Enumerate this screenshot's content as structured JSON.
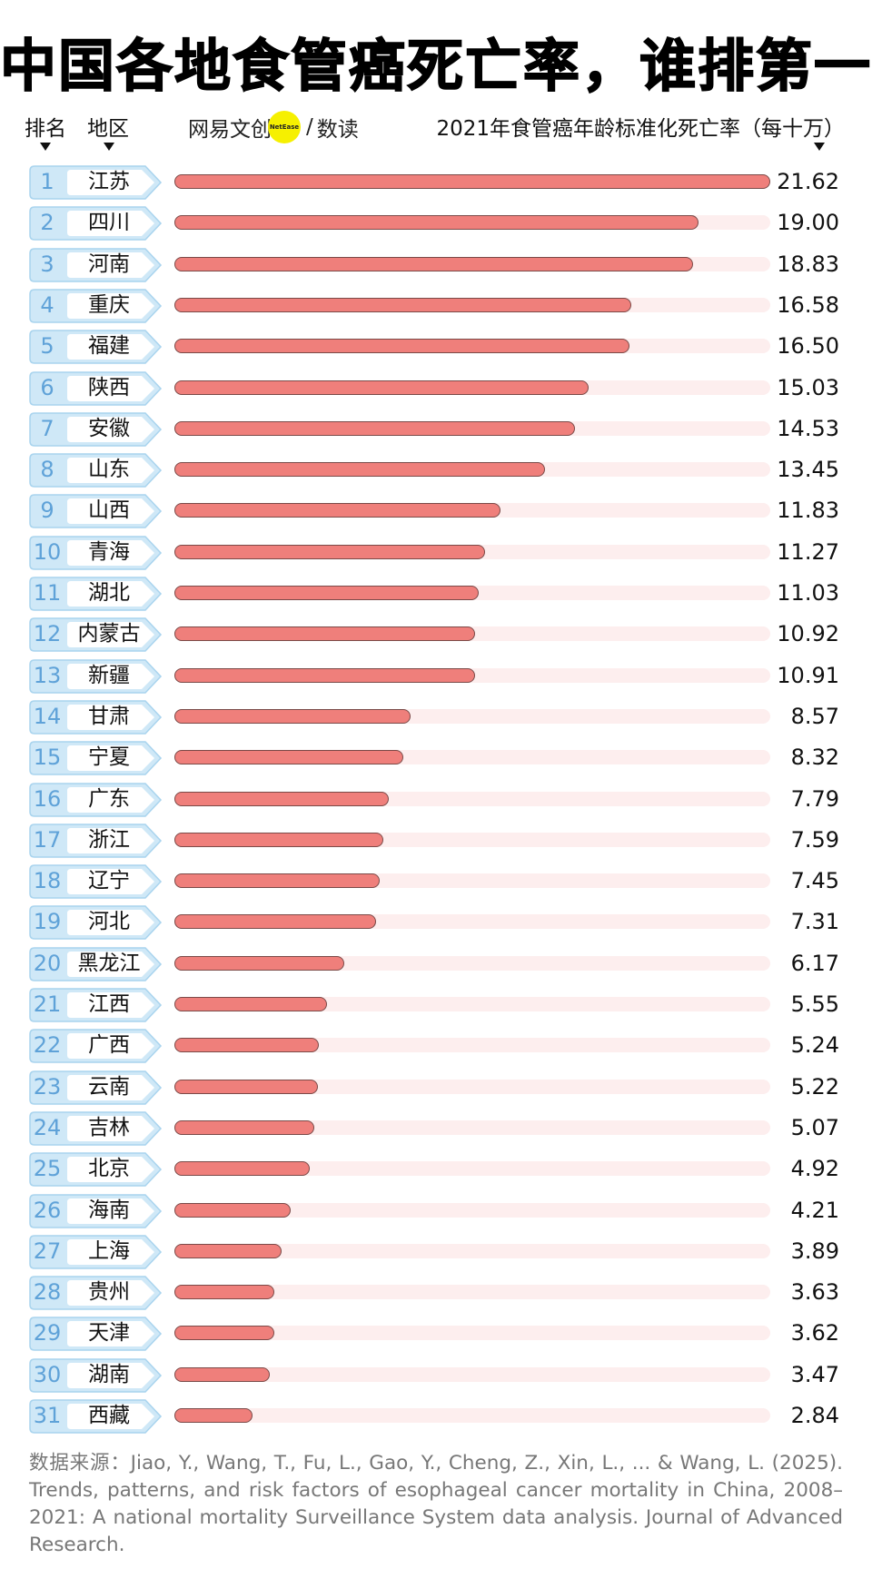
{
  "header": {
    "title": "中国各地食管癌死亡率，谁排第一",
    "col_rank": "排名",
    "col_region": "地区",
    "col_value": "2021年食管癌年龄标准化死亡率（每十万）",
    "brand_left": "网易文创",
    "brand_badge": "NetEase",
    "brand_slash": "/",
    "brand_right": "数读"
  },
  "colors": {
    "bar_fill": "#ef7f7b",
    "bar_border": "#7a4a48",
    "track": "#fdeeee",
    "tag_fill": "#cfe8f7",
    "tag_border": "#a9d4ee",
    "rank_text": "#5fa2d8",
    "brand_badge": "#f6f000"
  },
  "rows": [
    {
      "rank": "1",
      "region": "江苏",
      "value": "21.62"
    },
    {
      "rank": "2",
      "region": "四川",
      "value": "19.00"
    },
    {
      "rank": "3",
      "region": "河南",
      "value": "18.83"
    },
    {
      "rank": "4",
      "region": "重庆",
      "value": "16.58"
    },
    {
      "rank": "5",
      "region": "福建",
      "value": "16.50"
    },
    {
      "rank": "6",
      "region": "陕西",
      "value": "15.03"
    },
    {
      "rank": "7",
      "region": "安徽",
      "value": "14.53"
    },
    {
      "rank": "8",
      "region": "山东",
      "value": "13.45"
    },
    {
      "rank": "9",
      "region": "山西",
      "value": "11.83"
    },
    {
      "rank": "10",
      "region": "青海",
      "value": "11.27"
    },
    {
      "rank": "11",
      "region": "湖北",
      "value": "11.03"
    },
    {
      "rank": "12",
      "region": "内蒙古",
      "value": "10.92"
    },
    {
      "rank": "13",
      "region": "新疆",
      "value": "10.91"
    },
    {
      "rank": "14",
      "region": "甘肃",
      "value": "8.57"
    },
    {
      "rank": "15",
      "region": "宁夏",
      "value": "8.32"
    },
    {
      "rank": "16",
      "region": "广东",
      "value": "7.79"
    },
    {
      "rank": "17",
      "region": "浙江",
      "value": "7.59"
    },
    {
      "rank": "18",
      "region": "辽宁",
      "value": "7.45"
    },
    {
      "rank": "19",
      "region": "河北",
      "value": "7.31"
    },
    {
      "rank": "20",
      "region": "黑龙江",
      "value": "6.17"
    },
    {
      "rank": "21",
      "region": "江西",
      "value": "5.55"
    },
    {
      "rank": "22",
      "region": "广西",
      "value": "5.24"
    },
    {
      "rank": "23",
      "region": "云南",
      "value": "5.22"
    },
    {
      "rank": "24",
      "region": "吉林",
      "value": "5.07"
    },
    {
      "rank": "25",
      "region": "北京",
      "value": "4.92"
    },
    {
      "rank": "26",
      "region": "海南",
      "value": "4.21"
    },
    {
      "rank": "27",
      "region": "上海",
      "value": "3.89"
    },
    {
      "rank": "28",
      "region": "贵州",
      "value": "3.63"
    },
    {
      "rank": "29",
      "region": "天津",
      "value": "3.62"
    },
    {
      "rank": "30",
      "region": "湖南",
      "value": "3.47"
    },
    {
      "rank": "31",
      "region": "西藏",
      "value": "2.84"
    }
  ],
  "footer": {
    "source": "数据来源：Jiao, Y., Wang, T., Fu, L., Gao, Y., Cheng, Z., Xin, L., ... & Wang, L. (2025). Trends, patterns, and risk factors of esophageal cancer mortality in China, 2008–2021: A national mortality Surveillance System data analysis. Journal of Advanced Research."
  },
  "chart_data": {
    "type": "bar",
    "orientation": "horizontal",
    "title": "中国各地食管癌死亡率，谁排第一",
    "xlabel": "2021年食管癌年龄标准化死亡率（每十万）",
    "ylabel": "地区",
    "categories": [
      "江苏",
      "四川",
      "河南",
      "重庆",
      "福建",
      "陕西",
      "安徽",
      "山东",
      "山西",
      "青海",
      "湖北",
      "内蒙古",
      "新疆",
      "甘肃",
      "宁夏",
      "广东",
      "浙江",
      "辽宁",
      "河北",
      "黑龙江",
      "江西",
      "广西",
      "云南",
      "吉林",
      "北京",
      "海南",
      "上海",
      "贵州",
      "天津",
      "湖南",
      "西藏"
    ],
    "values": [
      21.62,
      19.0,
      18.83,
      16.58,
      16.5,
      15.03,
      14.53,
      13.45,
      11.83,
      11.27,
      11.03,
      10.92,
      10.91,
      8.57,
      8.32,
      7.79,
      7.59,
      7.45,
      7.31,
      6.17,
      5.55,
      5.24,
      5.22,
      5.07,
      4.92,
      4.21,
      3.89,
      3.63,
      3.62,
      3.47,
      2.84
    ],
    "ranks": [
      1,
      2,
      3,
      4,
      5,
      6,
      7,
      8,
      9,
      10,
      11,
      12,
      13,
      14,
      15,
      16,
      17,
      18,
      19,
      20,
      21,
      22,
      23,
      24,
      25,
      26,
      27,
      28,
      29,
      30,
      31
    ],
    "xlim": [
      0,
      21.62
    ],
    "grid": false,
    "legend": null,
    "data_labels": true,
    "source": "Jiao, Y., Wang, T., Fu, L., Gao, Y., Cheng, Z., Xin, L., ... & Wang, L. (2025). Journal of Advanced Research."
  }
}
